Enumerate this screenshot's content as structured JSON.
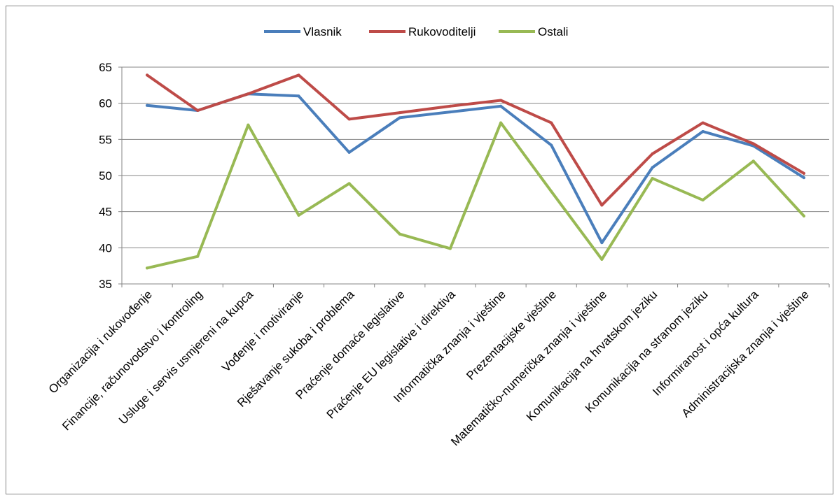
{
  "chart_data": {
    "type": "line",
    "categories": [
      "Organizacija i rukovođenje",
      "Financije, računovodstvo i kontroling",
      "Usluge i servis usmjereni na kupca",
      "Vođenje i motiviranje",
      "Rješavanje sukoba i problema",
      "Praćenje domaće legislative",
      "Praćenje EU legislative i direktiva",
      "Informatička znanja i vještine",
      "Prezentacijske vještine",
      "Matematičko-numerička znanja i vještine",
      "Komunikacija na hrvatskom jeziku",
      "Komunikacija na stranom jeziku",
      "Informiranost i opća kultura",
      "Administracijska znanja i vještine"
    ],
    "series": [
      {
        "name": "Vlasnik",
        "color": "#4a7ebb",
        "values": [
          59.7,
          59.0,
          61.3,
          61.0,
          53.2,
          58.0,
          58.8,
          59.6,
          54.2,
          40.7,
          51.1,
          56.1,
          54.1,
          49.7
        ]
      },
      {
        "name": "Rukovoditelji",
        "color": "#be4b48",
        "values": [
          63.9,
          59.0,
          61.3,
          63.9,
          57.8,
          58.7,
          59.6,
          60.4,
          57.3,
          45.9,
          53.0,
          57.3,
          54.4,
          50.3
        ]
      },
      {
        "name": "Ostali",
        "color": "#98b954",
        "values": [
          37.2,
          38.8,
          57.0,
          44.5,
          48.9,
          41.9,
          39.9,
          57.3,
          47.8,
          38.4,
          49.6,
          46.6,
          52.0,
          44.4
        ]
      }
    ],
    "ylim": [
      35,
      65
    ],
    "yticks": [
      35,
      40,
      45,
      50,
      55,
      60,
      65
    ],
    "grid": true,
    "legend_position": "top-center",
    "title": "",
    "xlabel": "",
    "ylabel": ""
  }
}
